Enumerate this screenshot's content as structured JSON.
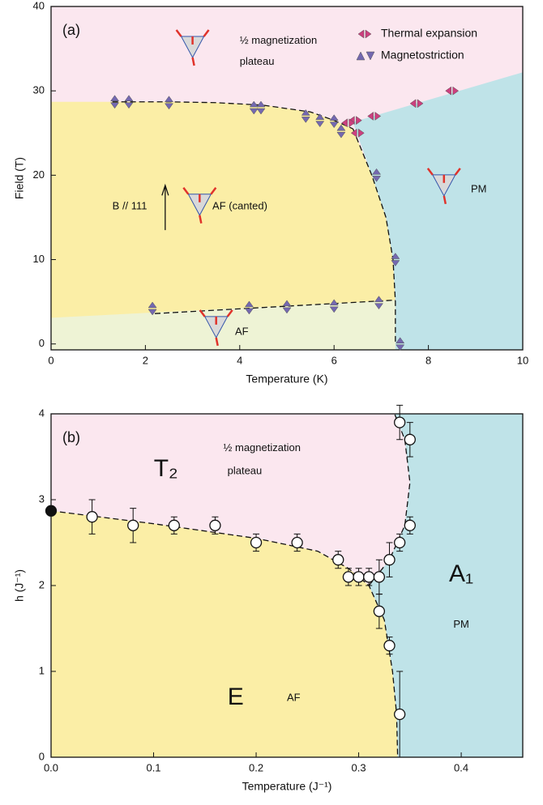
{
  "chart_data": [
    {
      "type": "scatter",
      "panel_label": "(a)",
      "xlabel": "Temperature (K)",
      "ylabel": "Field (T)",
      "xlim": [
        0,
        10
      ],
      "ylim": [
        -0.7,
        40
      ],
      "xticks": [
        0,
        2,
        4,
        6,
        8,
        10
      ],
      "yticks": [
        0,
        10,
        20,
        30,
        40
      ],
      "legend": "upper right",
      "series": [
        {
          "name": "Thermal expansion",
          "color": "#cc3f7e",
          "marker": "lr-triangles",
          "x": [
            8.5,
            7.75,
            6.85,
            6.45,
            6.3,
            6.5
          ],
          "values": [
            30,
            28.5,
            27,
            26.5,
            26.2,
            25
          ]
        },
        {
          "name": "Magnetostriction",
          "color": "#7468b0",
          "marker": "ud-triangles",
          "x": [
            1.35,
            1.65,
            2.5,
            4.3,
            4.45,
            5.4,
            5.7,
            6.0,
            6.15,
            6.9,
            7.3,
            7.4,
            2.15,
            4.2,
            5.0,
            6.0,
            6.95
          ],
          "values": [
            28.7,
            28.7,
            28.6,
            28,
            28,
            27,
            26.5,
            26.4,
            25.2,
            20,
            10,
            0,
            4.2,
            4.3,
            4.4,
            4.5,
            4.9
          ]
        }
      ],
      "regions": [
        {
          "color": "#fbe7ef",
          "x": [
            0,
            10,
            10,
            0
          ],
          "y": [
            40,
            40,
            -0.7,
            -0.7
          ]
        },
        {
          "color": "#fbeea6",
          "x": [
            0,
            1.3,
            2.5,
            3.5,
            4.5,
            5.5,
            6.0,
            6.4,
            6.8,
            7.1,
            7.25,
            7.3,
            7.3,
            0
          ],
          "y": [
            28.7,
            28.7,
            28.7,
            28.6,
            28.3,
            27.5,
            26.5,
            25.5,
            20,
            15,
            10,
            5,
            -0.7,
            -0.7
          ]
        },
        {
          "color": "#eef3d5",
          "x": [
            0,
            7.3,
            7.3,
            0
          ],
          "y": [
            3.1,
            5.2,
            -0.7,
            -0.7
          ]
        },
        {
          "color": "#bfe3e8",
          "x": [
            6.4,
            10,
            10,
            7.3,
            7.3,
            7.25,
            7.1,
            6.8
          ],
          "y": [
            26.3,
            32.2,
            -0.7,
            -0.7,
            5,
            10,
            15,
            20
          ]
        }
      ],
      "boundaries": [
        {
          "x": [
            1.3,
            2.5,
            3.5,
            4.5,
            5.5,
            6.0,
            6.4
          ],
          "y": [
            28.7,
            28.7,
            28.6,
            28.3,
            27.5,
            26.5,
            25.5
          ]
        },
        {
          "x": [
            6.4,
            6.8,
            7.1,
            7.25,
            7.3,
            7.3
          ],
          "y": [
            25.5,
            20,
            15,
            10,
            5,
            0
          ]
        },
        {
          "x": [
            2.2,
            7.3
          ],
          "y": [
            3.6,
            5.2
          ]
        }
      ],
      "annotations": [
        "½ magnetization",
        "plateau",
        "B // 111",
        "AF (canted)",
        "AF",
        "PM"
      ]
    },
    {
      "type": "scatter",
      "panel_label": "(b)",
      "xlabel": "Temperature (J⁻¹)",
      "ylabel": "h (J⁻¹)",
      "xlim": [
        0,
        0.46
      ],
      "ylim": [
        0,
        4
      ],
      "xticks": [
        {
          "value": 0,
          "label": "0.0"
        },
        0.1,
        0.2,
        0.3,
        0.4
      ],
      "yticks": [
        0,
        1,
        2,
        3,
        4
      ],
      "series": [
        {
          "color": "#ffffff",
          "marker": "circle",
          "x": [
            0.04,
            0.08,
            0.12,
            0.16,
            0.2,
            0.24,
            0.28,
            0.29,
            0.3,
            0.31,
            0.32,
            0.33,
            0.34,
            0.35,
            0.34,
            0.35,
            0.32,
            0.33,
            0.34
          ],
          "values": [
            2.8,
            2.7,
            2.7,
            2.7,
            2.5,
            2.5,
            2.3,
            2.1,
            2.1,
            2.1,
            2.1,
            2.3,
            2.5,
            2.7,
            3.9,
            3.7,
            1.7,
            1.3,
            0.5
          ],
          "errors": [
            0.2,
            0.2,
            0.1,
            0.1,
            0.1,
            0.1,
            0.1,
            0.1,
            0.1,
            0.1,
            0.2,
            0.2,
            0.1,
            0.1,
            0.2,
            0.2,
            0.2,
            0.1,
            0.5
          ]
        },
        {
          "color": "#111111",
          "marker": "circle",
          "x": [
            0
          ],
          "values": [
            2.87
          ]
        }
      ],
      "regions": [
        {
          "color": "#fbe7ef",
          "x": [
            0,
            0.46,
            0.46,
            0
          ],
          "y": [
            4,
            4,
            0,
            0
          ]
        },
        {
          "color": "#fbeea6",
          "x": [
            0,
            0.1,
            0.2,
            0.26,
            0.29,
            0.31,
            0.325,
            0.333,
            0.337,
            0.338,
            0
          ],
          "y": [
            2.87,
            2.72,
            2.55,
            2.4,
            2.2,
            2.0,
            1.6,
            1.0,
            0.5,
            0,
            0
          ]
        },
        {
          "color": "#bfe3e8",
          "x": [
            0.335,
            0.46,
            0.46,
            0.338,
            0.337,
            0.333,
            0.325,
            0.31,
            0.33,
            0.345,
            0.35,
            0.345
          ],
          "y": [
            4,
            4,
            0,
            0,
            0.5,
            1.0,
            1.6,
            2.0,
            2.3,
            2.7,
            3.2,
            3.7
          ]
        }
      ],
      "boundaries": [
        {
          "x": [
            0,
            0.1,
            0.2,
            0.26,
            0.29,
            0.31,
            0.325,
            0.333,
            0.337,
            0.338
          ],
          "y": [
            2.87,
            2.72,
            2.55,
            2.4,
            2.2,
            2.0,
            1.6,
            1.0,
            0.5,
            0
          ]
        },
        {
          "x": [
            0.31,
            0.33,
            0.345,
            0.35,
            0.345,
            0.335
          ],
          "y": [
            2.0,
            2.3,
            2.7,
            3.2,
            3.7,
            4.0
          ]
        }
      ],
      "annotations": [
        "T₂",
        "½ magnetization",
        "plateau",
        "A₁",
        "PM",
        "E",
        "AF"
      ]
    }
  ]
}
